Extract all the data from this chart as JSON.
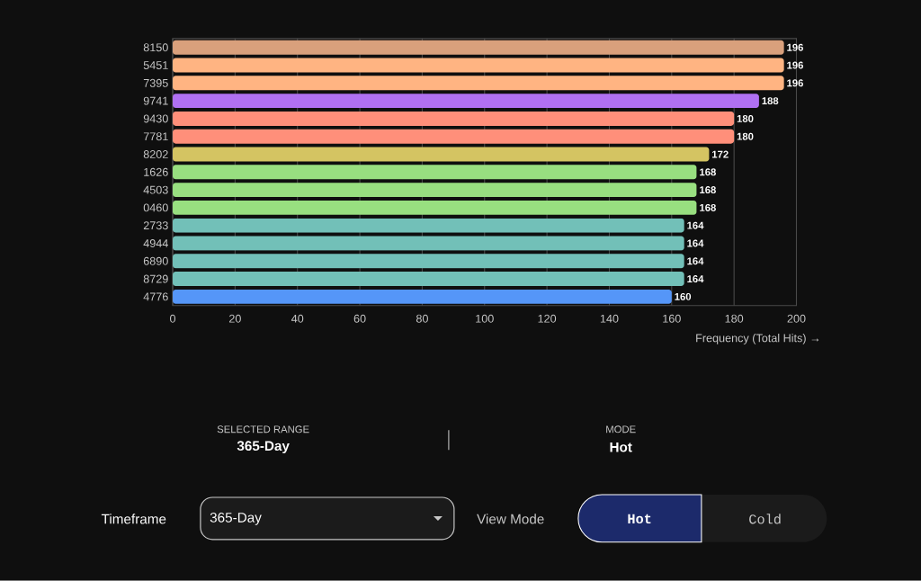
{
  "chart_data": {
    "type": "bar",
    "orientation": "horizontal",
    "categories": [
      "8150",
      "5451",
      "7395",
      "9741",
      "9430",
      "7781",
      "8202",
      "1626",
      "4503",
      "0460",
      "2733",
      "4944",
      "6890",
      "8729",
      "4776"
    ],
    "values": [
      196,
      196,
      196,
      188,
      180,
      180,
      172,
      168,
      168,
      168,
      164,
      164,
      164,
      164,
      160
    ],
    "colors": [
      "#d9a07c",
      "#ffb482",
      "#ffb482",
      "#b070f2",
      "#ff8f7a",
      "#ff8f7a",
      "#d4c462",
      "#98df80",
      "#98df80",
      "#98df80",
      "#72c0b8",
      "#72c0b8",
      "#72c0b8",
      "#72c0b8",
      "#5596f8"
    ],
    "xlim": [
      0,
      200
    ],
    "xticks": [
      0,
      20,
      40,
      60,
      80,
      100,
      120,
      140,
      160,
      180,
      200
    ],
    "xlabel": "Frequency (Total Hits) →",
    "grid": "x",
    "data_labels": true,
    "annotations": [
      "SELECTED RANGE",
      "365-Day",
      "MODE",
      "Hot",
      "Timeframe",
      "365-Day",
      "View Mode",
      "Hot",
      "Cold"
    ]
  }
}
